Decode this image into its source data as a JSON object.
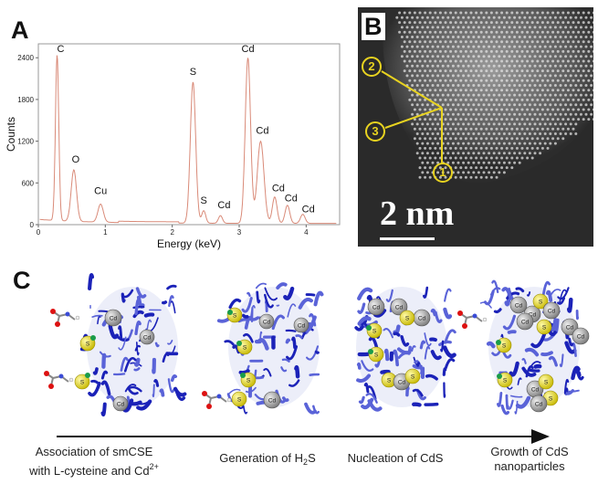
{
  "figure": {
    "panel_labels": {
      "a": "A",
      "b": "B",
      "c": "C"
    },
    "panel_a": {
      "chart_data": {
        "type": "line",
        "title": "",
        "xlabel": "Energy (keV)",
        "ylabel": "Counts",
        "xlim": [
          0,
          4.5
        ],
        "ylim": [
          0,
          2600
        ],
        "x_ticks": [
          "0",
          "1",
          "2",
          "3",
          "4"
        ],
        "y_ticks": [
          "0",
          "600",
          "1200",
          "1800",
          "2400"
        ],
        "line_color": "#d98a78",
        "peaks": [
          {
            "label": "C",
            "x": 0.28,
            "y": 2400
          },
          {
            "label": "O",
            "x": 0.53,
            "y": 760
          },
          {
            "label": "Cu",
            "x": 0.93,
            "y": 280
          },
          {
            "label": "S",
            "x": 2.31,
            "y": 2050
          },
          {
            "label": "S",
            "x": 2.47,
            "y": 200
          },
          {
            "label": "Cd",
            "x": 2.72,
            "y": 130
          },
          {
            "label": "Cd",
            "x": 3.13,
            "y": 2400
          },
          {
            "label": "Cd",
            "x": 3.32,
            "y": 1200
          },
          {
            "label": "Cd",
            "x": 3.53,
            "y": 400
          },
          {
            "label": "Cd",
            "x": 3.72,
            "y": 280
          },
          {
            "label": "Cd",
            "x": 3.95,
            "y": 150
          }
        ]
      }
    },
    "panel_b": {
      "scale_bar_label": "2 nm",
      "site_labels": [
        "1",
        "2",
        "3"
      ]
    },
    "panel_c": {
      "atom_labels": {
        "cadmium": "Cd",
        "sulfur": "S"
      },
      "stages": [
        {
          "line1": "Association of smCSE",
          "line2_pre": "with L-cysteine and Cd",
          "line2_sup": "2+"
        },
        {
          "line1_pre": "Generation of H",
          "line1_sub": "2",
          "line1_post": "S"
        },
        {
          "line1": "Nucleation of CdS"
        },
        {
          "line1": "Growth of CdS",
          "line2": "nanoparticles"
        }
      ]
    }
  }
}
